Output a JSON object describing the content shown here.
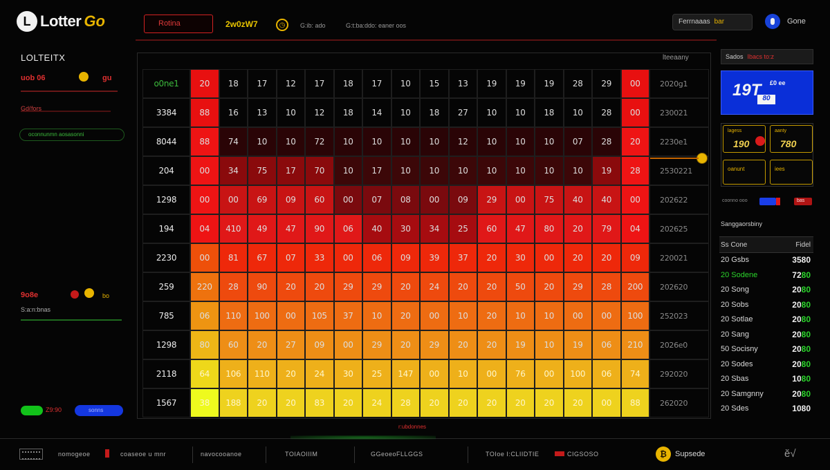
{
  "header": {
    "logo_text": "Lotter",
    "logo_accent": "Go",
    "search_label": "Rotina",
    "date": "2w0zW7",
    "status_text": "G:ib: ado",
    "info_text": "G:t:ba:ddo: eaner oos",
    "account_button": "Ferrnaaas",
    "account_button_accent": "bar",
    "user_name": "Gone"
  },
  "sidebar": {
    "title": "LOLTEITX",
    "row1_label": "uob 06",
    "row1_value": "gu",
    "row2_label": "Gd(fors",
    "pill_text": "oconnunmn aosasonni",
    "row3_label": "9o8e",
    "row3_value": "bo",
    "row4_label": "S:a:n:bnas",
    "green_btn_label": "Z9:90",
    "blue_btn_label": "sonns"
  },
  "grid": {
    "side_header": "lteeaany",
    "footer_text": "r:ubdonnes",
    "rows": [
      {
        "label": "o0ne1",
        "cells": [
          "20",
          "18",
          "17",
          "12",
          "17",
          "18",
          "17",
          "10",
          "15",
          "13",
          "19",
          "19",
          "19",
          "28",
          "29",
          "00"
        ],
        "side": "2020g1"
      },
      {
        "label": "3384",
        "cells": [
          "88",
          "16",
          "13",
          "10",
          "12",
          "18",
          "14",
          "10",
          "18",
          "27",
          "10",
          "10",
          "18",
          "10",
          "28",
          "00"
        ],
        "side": "230021"
      },
      {
        "label": "8044",
        "cells": [
          "88",
          "74",
          "10",
          "10",
          "72",
          "10",
          "10",
          "10",
          "10",
          "12",
          "10",
          "10",
          "10",
          "07",
          "28",
          "20"
        ],
        "side": "2230e1"
      },
      {
        "label": "204",
        "cells": [
          "00",
          "34",
          "75",
          "17",
          "70",
          "10",
          "17",
          "10",
          "10",
          "10",
          "10",
          "10",
          "10",
          "10",
          "19",
          "28"
        ],
        "side": "2530221"
      },
      {
        "label": "1298",
        "cells": [
          "00",
          "00",
          "69",
          "09",
          "60",
          "00",
          "07",
          "08",
          "00",
          "09",
          "29",
          "00",
          "75",
          "40",
          "40",
          "00"
        ],
        "side": "202622"
      },
      {
        "label": "194",
        "cells": [
          "04",
          "410",
          "49",
          "47",
          "90",
          "06",
          "40",
          "30",
          "34",
          "25",
          "60",
          "47",
          "80",
          "20",
          "79",
          "04"
        ],
        "side": "202625"
      },
      {
        "label": "2230",
        "cells": [
          "00",
          "81",
          "67",
          "07",
          "33",
          "00",
          "06",
          "09",
          "39",
          "37",
          "20",
          "30",
          "00",
          "20",
          "20",
          "09"
        ],
        "side": "220021"
      },
      {
        "label": "259",
        "cells": [
          "220",
          "28",
          "90",
          "20",
          "20",
          "29",
          "29",
          "20",
          "24",
          "20",
          "20",
          "50",
          "20",
          "29",
          "28",
          "200"
        ],
        "side": "202620"
      },
      {
        "label": "785",
        "cells": [
          "06",
          "110",
          "100",
          "00",
          "105",
          "37",
          "10",
          "20",
          "00",
          "10",
          "20",
          "10",
          "10",
          "00",
          "00",
          "100"
        ],
        "side": "252023"
      },
      {
        "label": "1298",
        "cells": [
          "80",
          "60",
          "20",
          "27",
          "09",
          "00",
          "29",
          "20",
          "29",
          "20",
          "20",
          "19",
          "10",
          "19",
          "06",
          "210"
        ],
        "side": "2026e0"
      },
      {
        "label": "2118",
        "cells": [
          "64",
          "106",
          "110",
          "20",
          "24",
          "30",
          "25",
          "147",
          "00",
          "10",
          "00",
          "76",
          "00",
          "100",
          "06",
          "74"
        ],
        "side": "292020"
      },
      {
        "label": "1567",
        "cells": [
          "38",
          "188",
          "20",
          "20",
          "83",
          "20",
          "24",
          "28",
          "20",
          "20",
          "20",
          "20",
          "20",
          "20",
          "00",
          "88"
        ],
        "side": "262020"
      }
    ]
  },
  "right_panel": {
    "tab_label": "Sados",
    "tab_accent": "Ibacs to:z",
    "promo_big": "19T",
    "promo_small": "£0 ee",
    "promo_chip": "80",
    "prize_left_label": "lagess",
    "prize_left_value": "190",
    "prize_right_label": "aanty",
    "prize_right_value": "780",
    "prize_left_sub": "oanunt",
    "prize_right_sub": "iees",
    "slider_label": "coonno ooo",
    "slider_value": "bas",
    "section_title": "Sanggaorsbiny",
    "table_head_left": "Ss Cone",
    "table_head_right": "Fidel",
    "rows": [
      {
        "name": "20 Gsbs",
        "amt": "3580",
        "green": false
      },
      {
        "name": "20 Sodene",
        "amt": "7280",
        "green": true
      },
      {
        "name": "20 Song",
        "amt": "2080",
        "green": true
      },
      {
        "name": "20 Sobs",
        "amt": "2080",
        "green": true
      },
      {
        "name": "20 Sotlae",
        "amt": "2080",
        "green": true
      },
      {
        "name": "20 Sang",
        "amt": "2080",
        "green": true
      },
      {
        "name": "50 Socisny",
        "amt": "2080",
        "green": true
      },
      {
        "name": "20 Sodes",
        "amt": "2080",
        "green": true
      },
      {
        "name": "20 Sbas",
        "amt": "1080",
        "green": true
      },
      {
        "name": "20 Samgnny",
        "amt": "2080",
        "green": true
      },
      {
        "name": "20 Sdes",
        "amt": "1080",
        "green": false
      }
    ]
  },
  "footer": {
    "item1": "nomogeoe",
    "item2": "coaseoe u mnr",
    "item3": "navocooanoe",
    "item4": "TOIAOIIIM",
    "item5": "GGeoeoFLLGGS",
    "item6": "TOIoe I:CLIIDTIE",
    "item7": "CIGSOSO",
    "support_label": "Supsede",
    "toggle_label": "ĕ√"
  },
  "colors": {
    "background": "#050505",
    "accent_red": "#e01818",
    "accent_yellow": "#e8b400",
    "accent_green": "#2bd52b",
    "accent_blue": "#1437e0"
  },
  "icons": {
    "logo": "lottery-ball-icon",
    "clock": "clock-icon",
    "user": "user-icon",
    "coin": "coin-icon",
    "heart": "heart-icon",
    "grid_menu": "grid-menu-icon"
  }
}
